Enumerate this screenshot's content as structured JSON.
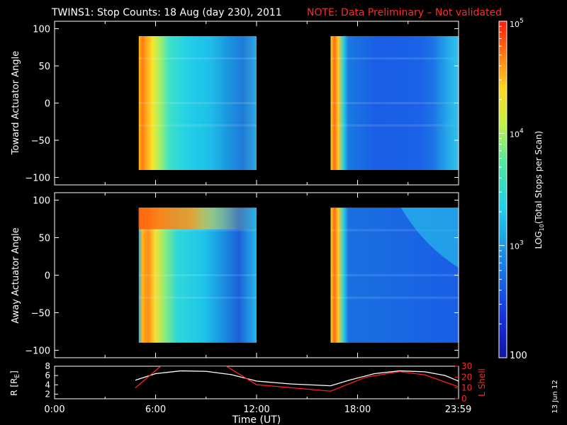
{
  "title": {
    "main": "TWINS1: Stop Counts: 18 Aug (day 230), 2011",
    "note": "NOTE: Data Preliminary – Not validated"
  },
  "chart_data": [
    {
      "type": "heatmap",
      "name": "toward-panel",
      "ylabel": "Toward Actuator Angle",
      "ylim": [
        -110,
        110
      ],
      "y_ticks": [
        "100",
        "50",
        "0",
        "−50",
        "−100"
      ],
      "y_tick_values": [
        100,
        50,
        0,
        -50,
        -100
      ],
      "x_range_hours": [
        0,
        24
      ],
      "data_segments_hours": [
        [
          5.0,
          12.0
        ],
        [
          16.4,
          24.0
        ]
      ],
      "angle_range": [
        -90,
        90
      ]
    },
    {
      "type": "heatmap",
      "name": "away-panel",
      "ylabel": "Away Actuator Angle",
      "ylim": [
        -110,
        110
      ],
      "y_ticks": [
        "100",
        "50",
        "0",
        "−50",
        "−100"
      ],
      "y_tick_values": [
        100,
        50,
        0,
        -50,
        -100
      ],
      "x_range_hours": [
        0,
        24
      ],
      "data_segments_hours": [
        [
          5.0,
          12.0
        ],
        [
          16.4,
          24.0
        ]
      ],
      "angle_range": [
        -90,
        90
      ]
    },
    {
      "type": "line",
      "name": "orbit-panel",
      "ylabel_left": "R [R",
      "ylabel_left_sub": "E",
      "ylabel_left_close": "]",
      "ylabel_right": "L Shell",
      "ylim_left": [
        1,
        8
      ],
      "ylim_right": [
        0,
        30
      ],
      "y_ticks_left": [
        "8",
        "6",
        "4",
        "2"
      ],
      "y_tick_values_left": [
        8,
        6,
        4,
        2
      ],
      "y_ticks_right": [
        "30",
        "20",
        "10",
        "0"
      ],
      "y_tick_values_right": [
        30,
        20,
        10,
        0
      ],
      "x_ticks": [
        "0:00",
        "6:00",
        "12:00",
        "18:00",
        "23:59"
      ],
      "x_tick_values": [
        0,
        6,
        12,
        18,
        23.98
      ],
      "xlabel": "Time (UT)",
      "series": [
        {
          "name": "R [RE]",
          "color": "#ffffff",
          "x": [
            4.8,
            6.0,
            7.5,
            9.0,
            10.5,
            12.0,
            14.0,
            16.4,
            17.5,
            19.0,
            20.5,
            22.0,
            23.2,
            24.0
          ],
          "y": [
            5.0,
            6.4,
            7.0,
            6.9,
            6.2,
            4.8,
            4.2,
            3.8,
            5.0,
            6.4,
            7.0,
            6.8,
            6.0,
            4.8
          ]
        },
        {
          "name": "L Shell",
          "color": "#ff2020",
          "x": [
            4.8,
            6.3,
            10.2,
            12.0,
            16.4,
            18.5,
            20.5,
            22.0,
            24.0
          ],
          "y": [
            10.0,
            30.0,
            30.0,
            13.0,
            7.0,
            20.0,
            25.0,
            22.0,
            11.0
          ]
        }
      ]
    }
  ],
  "colorbar": {
    "label_prefix": "LOG",
    "label_sub": "10",
    "label_suffix": "(Total Stops per Scan)",
    "ticks": [
      {
        "base": "10",
        "exp": "5",
        "value": 100000
      },
      {
        "base": "10",
        "exp": "4",
        "value": 10000
      },
      {
        "base": "10",
        "exp": "3",
        "value": 1000
      },
      {
        "base": "100",
        "exp": "",
        "value": 100
      }
    ],
    "range": [
      100,
      100000
    ]
  },
  "footer_date": "13 Jun 12"
}
